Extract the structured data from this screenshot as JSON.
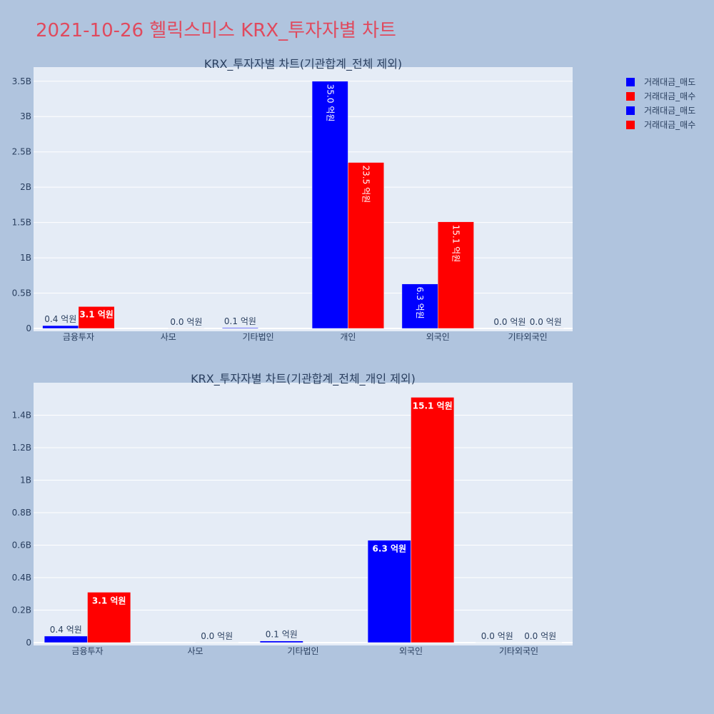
{
  "page": {
    "title": "2021-10-26 헬릭스미스 KRX_투자자별 차트",
    "background": "#b0c4de",
    "title_color": "#e04a5e",
    "plot_background": "#e5ecf6"
  },
  "legend": {
    "placement": "top-right",
    "entries": [
      {
        "label": "거래대금_매도",
        "color": "#0000ff"
      },
      {
        "label": "거래대금_매수",
        "color": "#ff0000"
      },
      {
        "label": "거래대금_매도",
        "color": "#0000ff"
      },
      {
        "label": "거래대금_매수",
        "color": "#ff0000"
      }
    ]
  },
  "chart_data": [
    {
      "type": "bar",
      "title": "KRX_투자자별 차트(기관합계_전체 제외)",
      "categories": [
        "금융투자",
        "사모",
        "기타법인",
        "개인",
        "외국인",
        "기타외국인"
      ],
      "ylim": [
        0,
        3.7
      ],
      "yticks": [
        0,
        0.5,
        1,
        1.5,
        2,
        2.5,
        3,
        3.5
      ],
      "ytick_labels": [
        "0",
        "0.5B",
        "1B",
        "1.5B",
        "2B",
        "2.5B",
        "3B",
        "3.5B"
      ],
      "grid": true,
      "series": [
        {
          "name": "거래대금_매도",
          "color": "#0000ff",
          "values": [
            0.04,
            0,
            0.01,
            3.5,
            0.63,
            0
          ],
          "labels": [
            "0.4 억원",
            "",
            "0.1 억원",
            "35.0 억원",
            "6.3 억원",
            "0.0 억원"
          ]
        },
        {
          "name": "거래대금_매수",
          "color": "#ff0000",
          "values": [
            0.31,
            0.001,
            0,
            2.35,
            1.51,
            0.001
          ],
          "labels": [
            "3.1 억원",
            "0.0 억원",
            "",
            "23.5 억원",
            "15.1 억원",
            "0.0 억원"
          ]
        }
      ]
    },
    {
      "type": "bar",
      "title": "KRX_투자자별 차트(기관합계_전체_개인 제외)",
      "categories": [
        "금융투자",
        "사모",
        "기타법인",
        "외국인",
        "기타외국인"
      ],
      "ylim": [
        0,
        1.6
      ],
      "yticks": [
        0,
        0.2,
        0.4,
        0.6,
        0.8,
        1,
        1.2,
        1.4
      ],
      "ytick_labels": [
        "0",
        "0.2B",
        "0.4B",
        "0.6B",
        "0.8B",
        "1B",
        "1.2B",
        "1.4B"
      ],
      "grid": true,
      "series": [
        {
          "name": "거래대금_매도",
          "color": "#0000ff",
          "values": [
            0.04,
            0,
            0.01,
            0.63,
            0.001
          ],
          "labels": [
            "0.4 억원",
            "",
            "0.1 억원",
            "6.3 억원",
            "0.0 억원"
          ]
        },
        {
          "name": "거래대금_매수",
          "color": "#ff0000",
          "values": [
            0.31,
            0.001,
            0,
            1.51,
            0.001
          ],
          "labels": [
            "3.1 억원",
            "0.0 억원",
            "",
            "15.1 억원",
            "0.0 억원"
          ]
        }
      ]
    }
  ]
}
